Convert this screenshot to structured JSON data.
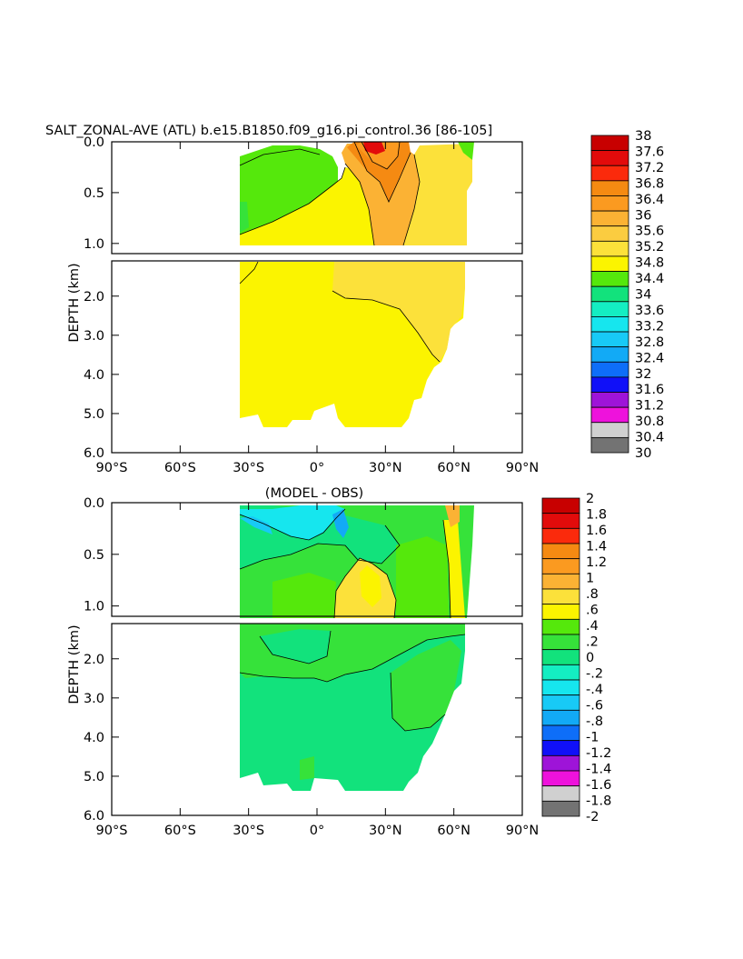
{
  "figure": {
    "title": "SALT_ZONAL-AVE (ATL) b.e15.B1850.f09_g16.pi_control.36 [86-105]"
  },
  "colors": {
    "ocean_yellow": "#fbf400",
    "ocean_pale": "#fce13a",
    "ocean_orange": "#fbb234",
    "ocean_dark_orange": "#f58a12",
    "ocean_red": "#e20b0b",
    "ocean_green": "#36e23a",
    "ocean_bright_green": "#55e80c",
    "ocean_teal": "#12e27c"
  },
  "chart_data": [
    {
      "type": "heatmap",
      "title": "",
      "xlabel": "",
      "ylabel": "DEPTH (km)",
      "xlim": [
        -90,
        90
      ],
      "ylim": [
        6.0,
        0.0
      ],
      "x_ticks": [
        "90°S",
        "60°S",
        "30°S",
        "0°",
        "30°N",
        "60°N",
        "90°N"
      ],
      "x_tick_values": [
        -90,
        -60,
        -30,
        0,
        30,
        60,
        90
      ],
      "upper_y_ticks": [
        "0.0",
        "0.5",
        "1.0"
      ],
      "upper_y_values": [
        0.0,
        0.5,
        1.0
      ],
      "lower_y_ticks": [
        "2.0",
        "3.0",
        "4.0",
        "5.0",
        "6.0"
      ],
      "lower_y_values": [
        2.0,
        3.0,
        4.0,
        5.0,
        6.0
      ],
      "colorbar": {
        "labels": [
          "38",
          "37.6",
          "37.2",
          "36.8",
          "36.4",
          "36",
          "35.6",
          "35.2",
          "34.8",
          "34.4",
          "34",
          "33.6",
          "33.2",
          "32.8",
          "32.4",
          "32",
          "31.6",
          "31.2",
          "30.8",
          "30.4",
          "30"
        ],
        "colors": [
          "#c80000",
          "#e20b0b",
          "#fb2a0c",
          "#f58a12",
          "#fb9a20",
          "#fbb234",
          "#fbcc40",
          "#fce13a",
          "#fbf400",
          "#55e80c",
          "#12e27c",
          "#14eec2",
          "#16e6ee",
          "#18caf6",
          "#12aaf6",
          "#0e6ef8",
          "#1010f8",
          "#9e14d8",
          "#ee12dc",
          "#d0d0d0",
          "#737373"
        ]
      },
      "notes": "Salinity (psu), Atlantic zonal average; data present ~35°S to ~65°N"
    },
    {
      "type": "heatmap",
      "title": "(MODEL - OBS)",
      "xlabel": "",
      "ylabel": "DEPTH (km)",
      "xlim": [
        -90,
        90
      ],
      "ylim": [
        6.0,
        0.0
      ],
      "x_ticks": [
        "90°S",
        "60°S",
        "30°S",
        "0°",
        "30°N",
        "60°N",
        "90°N"
      ],
      "x_tick_values": [
        -90,
        -60,
        -30,
        0,
        30,
        60,
        90
      ],
      "upper_y_ticks": [
        "0.0",
        "0.5",
        "1.0"
      ],
      "upper_y_values": [
        0.0,
        0.5,
        1.0
      ],
      "lower_y_ticks": [
        "2.0",
        "3.0",
        "4.0",
        "5.0",
        "6.0"
      ],
      "lower_y_values": [
        2.0,
        3.0,
        4.0,
        5.0,
        6.0
      ],
      "colorbar": {
        "labels": [
          "2",
          "1.8",
          "1.6",
          "1.4",
          "1.2",
          "1",
          ".8",
          ".6",
          ".4",
          ".2",
          "0",
          "-.2",
          "-.4",
          "-.6",
          "-.8",
          "-1",
          "-1.2",
          "-1.4",
          "-1.6",
          "-1.8",
          "-2"
        ],
        "colors": [
          "#c80000",
          "#e20b0b",
          "#fb2a0c",
          "#f58a12",
          "#fb9a20",
          "#fbb234",
          "#fce13a",
          "#fbf400",
          "#55e80c",
          "#36e23a",
          "#12e27c",
          "#14eec2",
          "#16e6ee",
          "#18caf6",
          "#12aaf6",
          "#0e6ef8",
          "#1010f8",
          "#9e14d8",
          "#ee12dc",
          "#d0d0d0",
          "#737373"
        ]
      }
    }
  ]
}
